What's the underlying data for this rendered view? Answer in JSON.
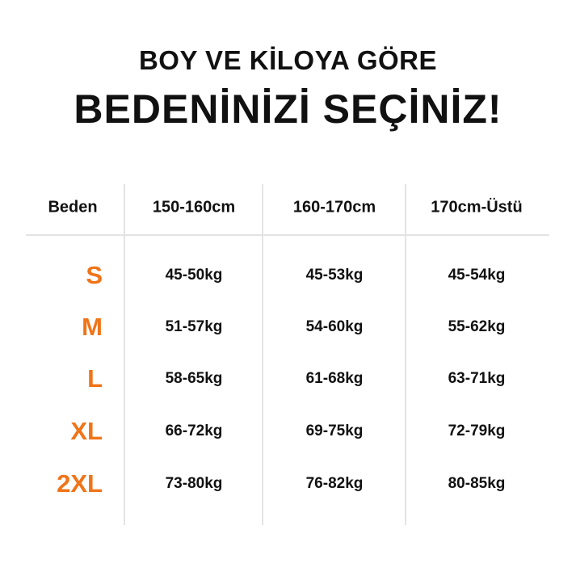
{
  "title": {
    "line1": "BOY VE KİLOYA GÖRE",
    "line2": "BEDENİNİZİ SEÇİNİZ!"
  },
  "colors": {
    "accent": "#f07418",
    "text": "#111111",
    "grid": "#e3e3e3"
  },
  "table": {
    "headers": [
      "Beden",
      "150-160cm",
      "160-170cm",
      "170cm-Üstü"
    ],
    "rows": [
      {
        "size": "S",
        "values": [
          "45-50kg",
          "45-53kg",
          "45-54kg"
        ]
      },
      {
        "size": "M",
        "values": [
          "51-57kg",
          "54-60kg",
          "55-62kg"
        ]
      },
      {
        "size": "L",
        "values": [
          "58-65kg",
          "61-68kg",
          "63-71kg"
        ]
      },
      {
        "size": "XL",
        "values": [
          "66-72kg",
          "69-75kg",
          "72-79kg"
        ]
      },
      {
        "size": "2XL",
        "values": [
          "73-80kg",
          "76-82kg",
          "80-85kg"
        ]
      }
    ]
  }
}
